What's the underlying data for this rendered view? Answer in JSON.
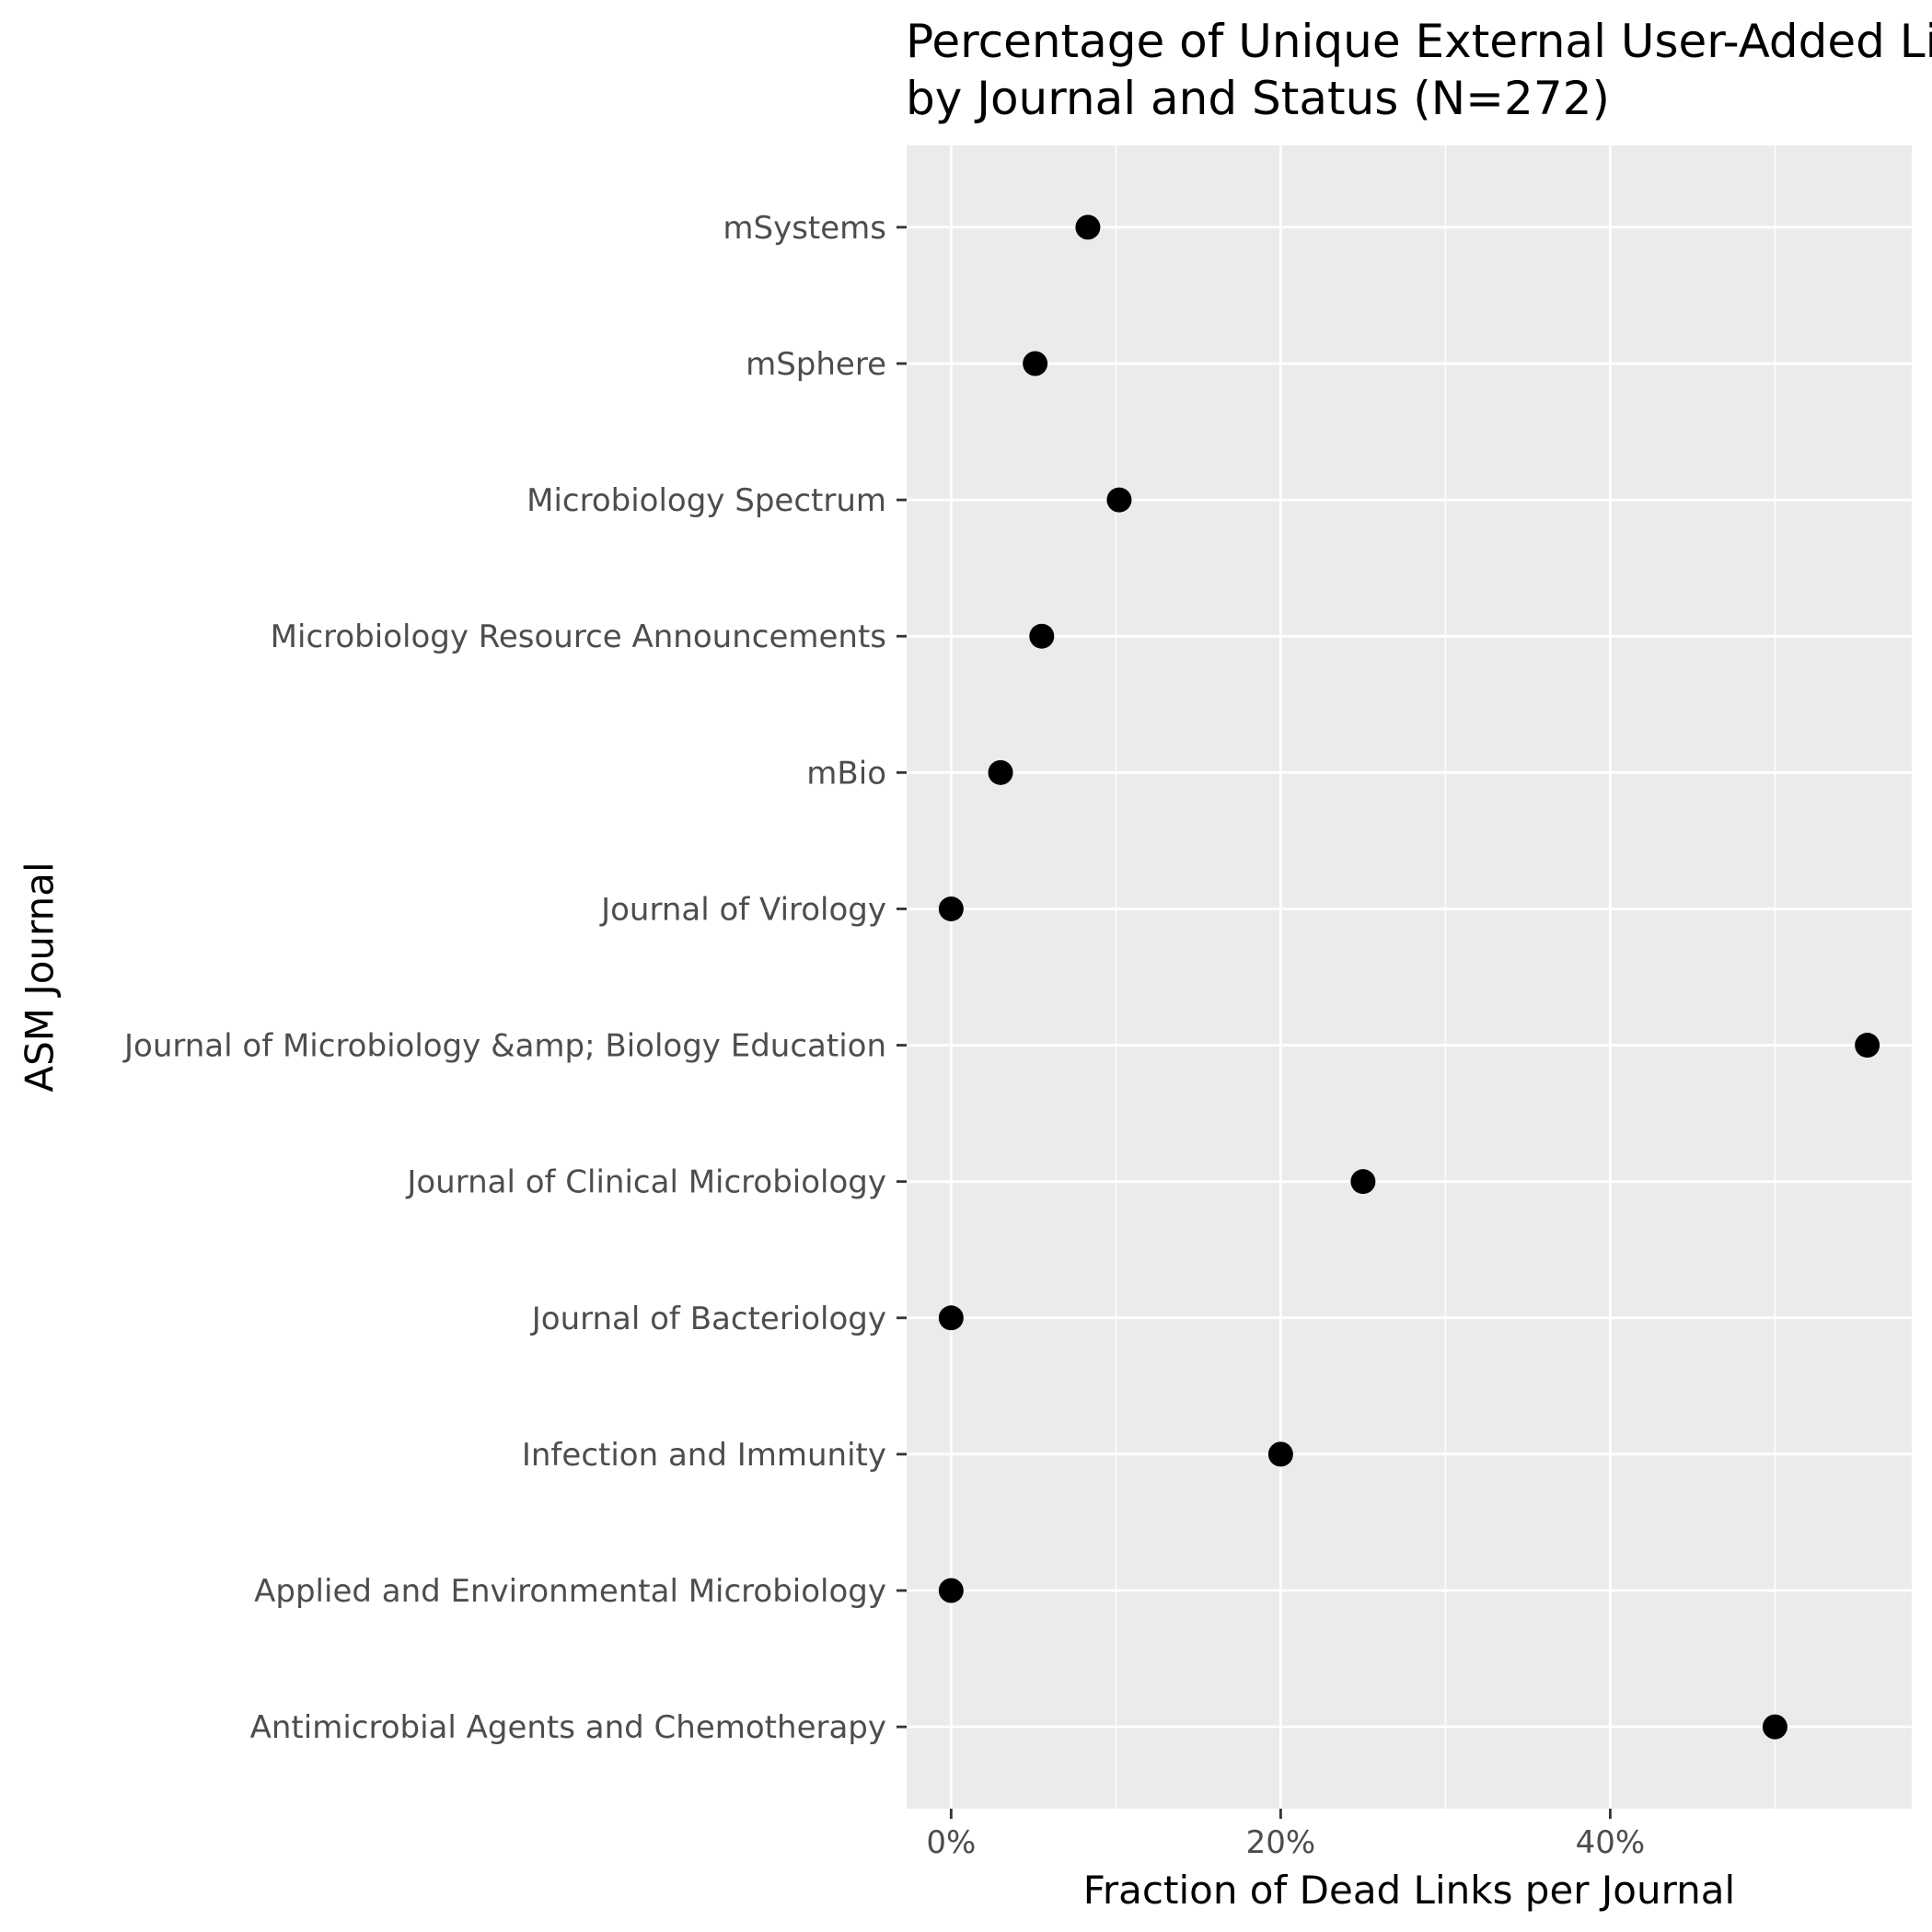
{
  "chart_data": {
    "type": "scatter",
    "title_lines": [
      "Percentage of Unique External User-Added Links",
      "by Journal and Status (N=272)"
    ],
    "xlabel": "Fraction of Dead Links per Journal",
    "ylabel": "ASM Journal",
    "x_ticks": [
      0,
      0.2,
      0.4
    ],
    "x_tick_labels": [
      "0%",
      "20%",
      "40%"
    ],
    "xlim": [
      -0.027,
      0.583
    ],
    "grid": true,
    "categories": [
      "Antimicrobial Agents and Chemotherapy",
      "Applied and Environmental Microbiology",
      "Infection and Immunity",
      "Journal of Bacteriology",
      "Journal of Clinical Microbiology",
      "Journal of Microbiology &amp; Biology Education",
      "Journal of Virology",
      "mBio",
      "Microbiology Resource Announcements",
      "Microbiology Spectrum",
      "mSphere",
      "mSystems"
    ],
    "values": [
      0.5,
      0.0,
      0.2,
      0.0,
      0.25,
      0.556,
      0.0,
      0.03,
      0.055,
      0.102,
      0.051,
      0.083
    ],
    "colors": {
      "panel": "#ebebeb",
      "grid_major": "#ffffff",
      "point": "#000000",
      "tick_mark": "#333333"
    }
  }
}
